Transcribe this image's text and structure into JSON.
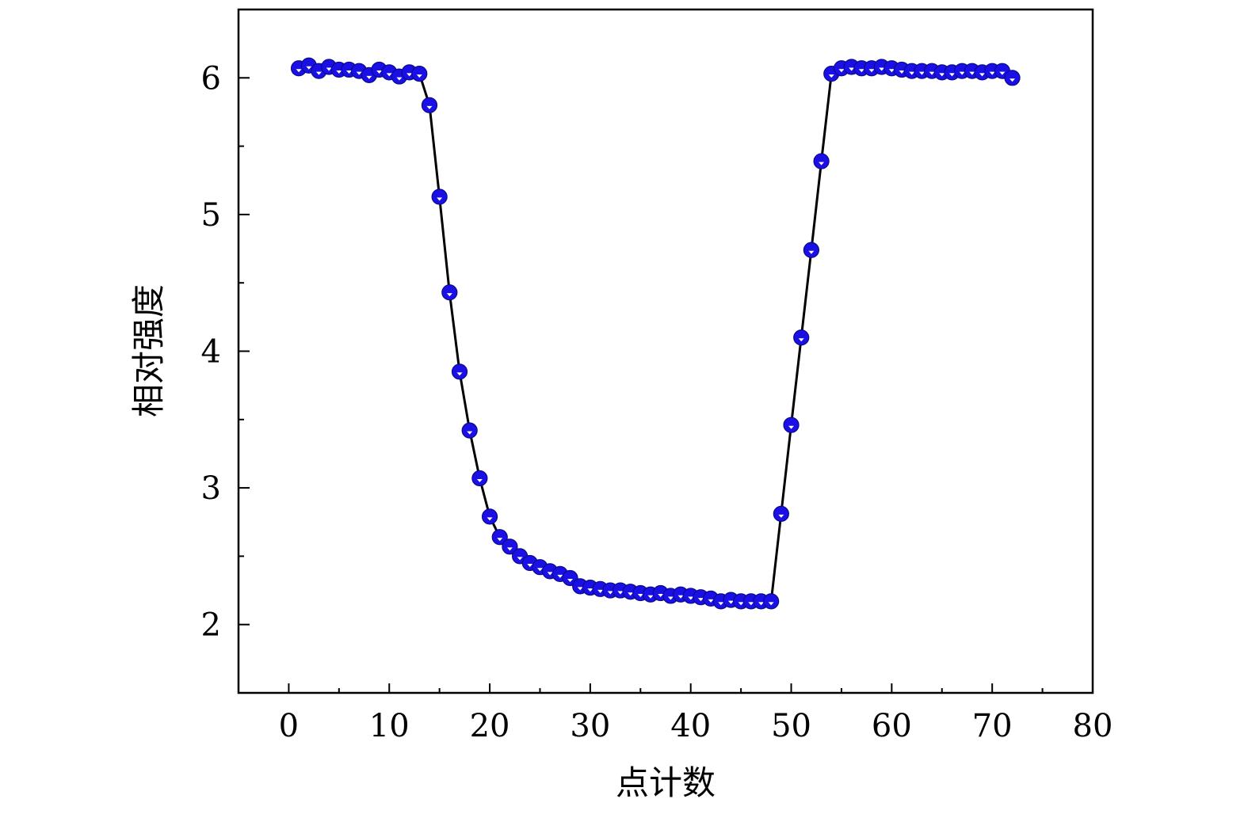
{
  "chart_data": {
    "type": "line",
    "title": "",
    "xlabel": "点计数",
    "ylabel": "相对强度",
    "xlim": [
      -5,
      80
    ],
    "ylim": [
      1.5,
      6.5
    ],
    "xticks": [
      0,
      10,
      20,
      30,
      40,
      50,
      60,
      70,
      80
    ],
    "xtick_labels": [
      "0",
      "10",
      "20",
      "30",
      "40",
      "50",
      "60",
      "70",
      "80"
    ],
    "yticks": [
      2,
      3,
      4,
      5,
      6
    ],
    "ytick_labels": [
      "2",
      "3",
      "4",
      "5",
      "6"
    ],
    "grid": false,
    "legend": "none",
    "line_color": "#000000",
    "marker_color": "#1a10e6",
    "series": [
      {
        "marker": "circle",
        "x": [
          1,
          2,
          3,
          4,
          5,
          6,
          7,
          8,
          9,
          10,
          11,
          12,
          13,
          14,
          15,
          16,
          17,
          18,
          19,
          20,
          21,
          22,
          23,
          24,
          25,
          26,
          27,
          28,
          29,
          30,
          31,
          32,
          33,
          34,
          35,
          36,
          37,
          38,
          39,
          40,
          41,
          42,
          43,
          44,
          45,
          46,
          47,
          48,
          49,
          50,
          51,
          52,
          53,
          54,
          55,
          56,
          57,
          58,
          59,
          60,
          61,
          62,
          63,
          64,
          65,
          66,
          67,
          68,
          69,
          70,
          71,
          72
        ],
        "y": [
          6.07,
          6.09,
          6.05,
          6.08,
          6.06,
          6.06,
          6.05,
          6.02,
          6.06,
          6.04,
          6.01,
          6.04,
          6.03,
          5.8,
          5.13,
          4.43,
          3.85,
          3.42,
          3.07,
          2.79,
          2.64,
          2.57,
          2.5,
          2.45,
          2.42,
          2.39,
          2.37,
          2.34,
          2.28,
          2.27,
          2.26,
          2.25,
          2.25,
          2.24,
          2.23,
          2.22,
          2.23,
          2.21,
          2.22,
          2.21,
          2.2,
          2.19,
          2.17,
          2.18,
          2.17,
          2.17,
          2.17,
          2.17,
          2.81,
          3.46,
          4.1,
          4.74,
          5.39,
          6.03,
          6.07,
          6.08,
          6.07,
          6.07,
          6.08,
          6.07,
          6.06,
          6.05,
          6.05,
          6.05,
          6.04,
          6.04,
          6.05,
          6.05,
          6.04,
          6.05,
          6.05,
          6.0
        ]
      }
    ]
  }
}
